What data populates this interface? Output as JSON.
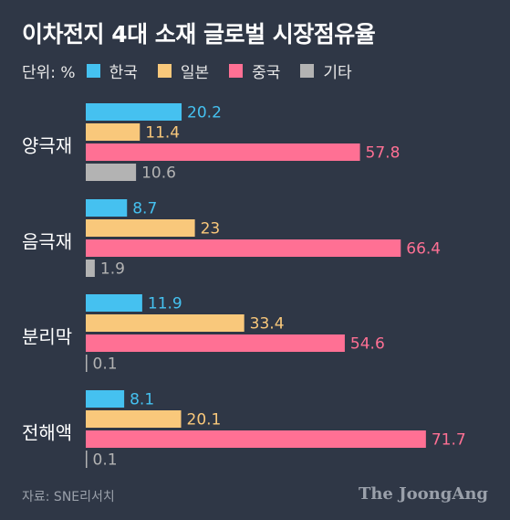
{
  "header": {
    "title": "이차전지 4대 소재 글로벌 시장점유율"
  },
  "legend": {
    "unit_label": "단위: %"
  },
  "chart_data": {
    "type": "bar",
    "orientation": "horizontal",
    "title": "이차전지 4대 소재 글로벌 시장점유율",
    "unit": "%",
    "categories": [
      "양극재",
      "음극재",
      "분리막",
      "전해액"
    ],
    "series": [
      {
        "name": "한국",
        "color": "#45c1f0",
        "values": [
          20.2,
          8.7,
          11.9,
          8.1
        ]
      },
      {
        "name": "일본",
        "color": "#f9c87b",
        "values": [
          11.4,
          23,
          33.4,
          20.1
        ]
      },
      {
        "name": "중국",
        "color": "#ff7094",
        "values": [
          57.8,
          66.4,
          54.6,
          71.7
        ]
      },
      {
        "name": "기타",
        "color": "#b3b3b3",
        "values": [
          10.6,
          1.9,
          0.1,
          0.1
        ]
      }
    ],
    "value_labels": [
      [
        "20.2",
        "11.4",
        "57.8",
        "10.6"
      ],
      [
        "8.7",
        "23",
        "66.4",
        "1.9"
      ],
      [
        "11.9",
        "33.4",
        "54.6",
        "0.1"
      ],
      [
        "8.1",
        "20.1",
        "71.7",
        "0.1"
      ]
    ],
    "label_colors": [
      "#45c1f0",
      "#f9c87b",
      "#ff7094",
      "#b3b3b3"
    ],
    "xlim": [
      0,
      100
    ],
    "grid": false,
    "legend_position": "top-left"
  },
  "footer": {
    "source": "자료: SNE리서치",
    "brand": "The JoongAng"
  }
}
